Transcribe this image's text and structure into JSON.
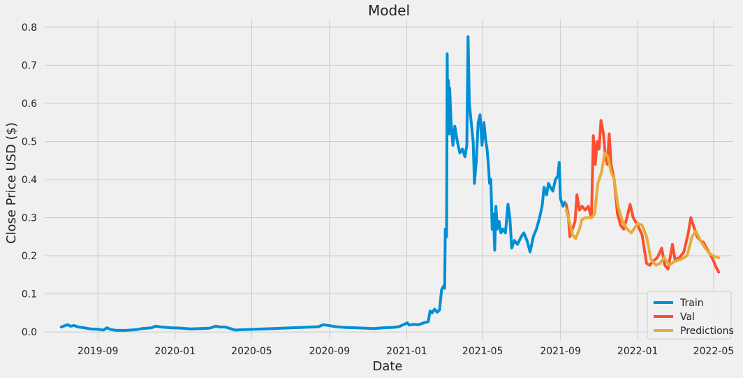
{
  "chart_data": {
    "type": "line",
    "title": "Model",
    "xlabel": "Date",
    "ylabel": "Close Price USD ($)",
    "xlim": [
      "2019-06-10",
      "2022-06-01"
    ],
    "ylim": [
      -0.02,
      0.82
    ],
    "grid": true,
    "legend_position": "lower-right",
    "x_ticks": [
      "2019-09-01",
      "2020-01-01",
      "2020-05-01",
      "2020-09-01",
      "2021-01-01",
      "2021-05-01",
      "2021-09-01",
      "2022-01-01",
      "2022-05-01"
    ],
    "x_tick_labels": [
      "2019-09",
      "2020-01",
      "2020-05",
      "2020-09",
      "2021-01",
      "2021-05",
      "2021-09",
      "2022-01",
      "2022-05"
    ],
    "y_ticks": [
      0.0,
      0.1,
      0.2,
      0.3,
      0.4,
      0.5,
      0.6,
      0.7,
      0.8
    ],
    "y_tick_labels": [
      "0.0",
      "0.1",
      "0.2",
      "0.3",
      "0.4",
      "0.5",
      "0.6",
      "0.7",
      "0.8"
    ],
    "series": [
      {
        "name": "Train",
        "color": "#008fd5",
        "points": [
          [
            "2019-07-05",
            0.013
          ],
          [
            "2019-07-10",
            0.016
          ],
          [
            "2019-07-15",
            0.019
          ],
          [
            "2019-07-20",
            0.015
          ],
          [
            "2019-07-25",
            0.017
          ],
          [
            "2019-08-01",
            0.013
          ],
          [
            "2019-08-10",
            0.011
          ],
          [
            "2019-08-20",
            0.008
          ],
          [
            "2019-09-01",
            0.007
          ],
          [
            "2019-09-10",
            0.005
          ],
          [
            "2019-09-15",
            0.011
          ],
          [
            "2019-09-22",
            0.006
          ],
          [
            "2019-10-01",
            0.004
          ],
          [
            "2019-10-15",
            0.004
          ],
          [
            "2019-11-01",
            0.006
          ],
          [
            "2019-11-10",
            0.009
          ],
          [
            "2019-11-25",
            0.011
          ],
          [
            "2019-12-01",
            0.015
          ],
          [
            "2019-12-10",
            0.013
          ],
          [
            "2019-12-25",
            0.011
          ],
          [
            "2020-01-10",
            0.01
          ],
          [
            "2020-01-25",
            0.008
          ],
          [
            "2020-02-10",
            0.009
          ],
          [
            "2020-02-25",
            0.01
          ],
          [
            "2020-03-05",
            0.015
          ],
          [
            "2020-03-12",
            0.013
          ],
          [
            "2020-03-20",
            0.013
          ],
          [
            "2020-03-28",
            0.009
          ],
          [
            "2020-04-05",
            0.005
          ],
          [
            "2020-04-20",
            0.006
          ],
          [
            "2020-05-05",
            0.007
          ],
          [
            "2020-05-20",
            0.008
          ],
          [
            "2020-06-05",
            0.009
          ],
          [
            "2020-06-20",
            0.01
          ],
          [
            "2020-07-05",
            0.011
          ],
          [
            "2020-07-20",
            0.012
          ],
          [
            "2020-08-05",
            0.013
          ],
          [
            "2020-08-15",
            0.014
          ],
          [
            "2020-08-22",
            0.019
          ],
          [
            "2020-08-30",
            0.017
          ],
          [
            "2020-09-10",
            0.014
          ],
          [
            "2020-09-25",
            0.012
          ],
          [
            "2020-10-10",
            0.011
          ],
          [
            "2020-10-25",
            0.01
          ],
          [
            "2020-11-10",
            0.009
          ],
          [
            "2020-11-25",
            0.011
          ],
          [
            "2020-12-10",
            0.012
          ],
          [
            "2020-12-20",
            0.014
          ],
          [
            "2020-12-28",
            0.02
          ],
          [
            "2021-01-02",
            0.024
          ],
          [
            "2021-01-05",
            0.018
          ],
          [
            "2021-01-12",
            0.02
          ],
          [
            "2021-01-20",
            0.019
          ],
          [
            "2021-01-28",
            0.024
          ],
          [
            "2021-02-04",
            0.027
          ],
          [
            "2021-02-07",
            0.055
          ],
          [
            "2021-02-10",
            0.05
          ],
          [
            "2021-02-14",
            0.06
          ],
          [
            "2021-02-18",
            0.052
          ],
          [
            "2021-02-22",
            0.058
          ],
          [
            "2021-02-25",
            0.11
          ],
          [
            "2021-02-28",
            0.12
          ],
          [
            "2021-03-02",
            0.115
          ],
          [
            "2021-03-03",
            0.27
          ],
          [
            "2021-03-05",
            0.25
          ],
          [
            "2021-03-06",
            0.73
          ],
          [
            "2021-03-07",
            0.53
          ],
          [
            "2021-03-08",
            0.66
          ],
          [
            "2021-03-09",
            0.52
          ],
          [
            "2021-03-10",
            0.64
          ],
          [
            "2021-03-12",
            0.55
          ],
          [
            "2021-03-15",
            0.49
          ],
          [
            "2021-03-18",
            0.54
          ],
          [
            "2021-03-22",
            0.5
          ],
          [
            "2021-03-26",
            0.47
          ],
          [
            "2021-03-30",
            0.48
          ],
          [
            "2021-04-03",
            0.46
          ],
          [
            "2021-04-06",
            0.49
          ],
          [
            "2021-04-08",
            0.775
          ],
          [
            "2021-04-10",
            0.6
          ],
          [
            "2021-04-13",
            0.55
          ],
          [
            "2021-04-16",
            0.5
          ],
          [
            "2021-04-18",
            0.39
          ],
          [
            "2021-04-21",
            0.45
          ],
          [
            "2021-04-24",
            0.55
          ],
          [
            "2021-04-27",
            0.57
          ],
          [
            "2021-04-30",
            0.49
          ],
          [
            "2021-05-03",
            0.55
          ],
          [
            "2021-05-06",
            0.5
          ],
          [
            "2021-05-08",
            0.48
          ],
          [
            "2021-05-10",
            0.44
          ],
          [
            "2021-05-12",
            0.39
          ],
          [
            "2021-05-14",
            0.4
          ],
          [
            "2021-05-16",
            0.27
          ],
          [
            "2021-05-18",
            0.31
          ],
          [
            "2021-05-20",
            0.215
          ],
          [
            "2021-05-22",
            0.33
          ],
          [
            "2021-05-24",
            0.27
          ],
          [
            "2021-05-27",
            0.29
          ],
          [
            "2021-05-30",
            0.26
          ],
          [
            "2021-06-02",
            0.27
          ],
          [
            "2021-06-06",
            0.26
          ],
          [
            "2021-06-10",
            0.335
          ],
          [
            "2021-06-13",
            0.3
          ],
          [
            "2021-06-16",
            0.22
          ],
          [
            "2021-06-20",
            0.24
          ],
          [
            "2021-06-25",
            0.23
          ],
          [
            "2021-07-01",
            0.25
          ],
          [
            "2021-07-05",
            0.26
          ],
          [
            "2021-07-10",
            0.24
          ],
          [
            "2021-07-15",
            0.21
          ],
          [
            "2021-07-20",
            0.25
          ],
          [
            "2021-07-25",
            0.27
          ],
          [
            "2021-07-30",
            0.3
          ],
          [
            "2021-08-03",
            0.33
          ],
          [
            "2021-08-06",
            0.38
          ],
          [
            "2021-08-10",
            0.36
          ],
          [
            "2021-08-13",
            0.39
          ],
          [
            "2021-08-16",
            0.38
          ],
          [
            "2021-08-20",
            0.37
          ],
          [
            "2021-08-24",
            0.4
          ],
          [
            "2021-08-28",
            0.41
          ],
          [
            "2021-08-30",
            0.445
          ],
          [
            "2021-09-01",
            0.35
          ],
          [
            "2021-09-05",
            0.33
          ],
          [
            "2021-09-08",
            0.34
          ]
        ]
      },
      {
        "name": "Val",
        "color": "#fc4f30",
        "points": [
          [
            "2021-09-10",
            0.335
          ],
          [
            "2021-09-13",
            0.31
          ],
          [
            "2021-09-16",
            0.25
          ],
          [
            "2021-09-20",
            0.27
          ],
          [
            "2021-09-24",
            0.29
          ],
          [
            "2021-09-27",
            0.36
          ],
          [
            "2021-10-01",
            0.32
          ],
          [
            "2021-10-05",
            0.33
          ],
          [
            "2021-10-10",
            0.32
          ],
          [
            "2021-10-15",
            0.33
          ],
          [
            "2021-10-20",
            0.3
          ],
          [
            "2021-10-23",
            0.515
          ],
          [
            "2021-10-26",
            0.44
          ],
          [
            "2021-10-29",
            0.5
          ],
          [
            "2021-11-01",
            0.48
          ],
          [
            "2021-11-04",
            0.555
          ],
          [
            "2021-11-08",
            0.52
          ],
          [
            "2021-11-11",
            0.46
          ],
          [
            "2021-11-14",
            0.44
          ],
          [
            "2021-11-17",
            0.52
          ],
          [
            "2021-11-20",
            0.44
          ],
          [
            "2021-11-25",
            0.4
          ],
          [
            "2021-11-30",
            0.31
          ],
          [
            "2021-12-05",
            0.28
          ],
          [
            "2021-12-10",
            0.27
          ],
          [
            "2021-12-15",
            0.3
          ],
          [
            "2021-12-20",
            0.335
          ],
          [
            "2021-12-25",
            0.3
          ],
          [
            "2022-01-01",
            0.28
          ],
          [
            "2022-01-08",
            0.255
          ],
          [
            "2022-01-15",
            0.18
          ],
          [
            "2022-01-20",
            0.175
          ],
          [
            "2022-01-25",
            0.185
          ],
          [
            "2022-02-01",
            0.195
          ],
          [
            "2022-02-08",
            0.22
          ],
          [
            "2022-02-13",
            0.175
          ],
          [
            "2022-02-18",
            0.165
          ],
          [
            "2022-02-25",
            0.23
          ],
          [
            "2022-03-01",
            0.19
          ],
          [
            "2022-03-08",
            0.195
          ],
          [
            "2022-03-15",
            0.21
          ],
          [
            "2022-03-22",
            0.26
          ],
          [
            "2022-03-26",
            0.3
          ],
          [
            "2022-03-30",
            0.28
          ],
          [
            "2022-04-05",
            0.25
          ],
          [
            "2022-04-10",
            0.24
          ],
          [
            "2022-04-15",
            0.235
          ],
          [
            "2022-04-20",
            0.22
          ],
          [
            "2022-04-25",
            0.205
          ],
          [
            "2022-04-30",
            0.19
          ],
          [
            "2022-05-05",
            0.17
          ],
          [
            "2022-05-09",
            0.157
          ]
        ]
      },
      {
        "name": "Predictions",
        "color": "#e5ae38",
        "points": [
          [
            "2021-09-10",
            0.32
          ],
          [
            "2021-09-15",
            0.29
          ],
          [
            "2021-09-20",
            0.255
          ],
          [
            "2021-09-25",
            0.245
          ],
          [
            "2021-10-01",
            0.27
          ],
          [
            "2021-10-05",
            0.295
          ],
          [
            "2021-10-10",
            0.3
          ],
          [
            "2021-10-20",
            0.3
          ],
          [
            "2021-10-25",
            0.31
          ],
          [
            "2021-10-30",
            0.39
          ],
          [
            "2021-11-05",
            0.42
          ],
          [
            "2021-11-10",
            0.47
          ],
          [
            "2021-11-15",
            0.46
          ],
          [
            "2021-11-20",
            0.42
          ],
          [
            "2021-11-25",
            0.4
          ],
          [
            "2021-12-01",
            0.33
          ],
          [
            "2021-12-08",
            0.29
          ],
          [
            "2021-12-15",
            0.27
          ],
          [
            "2021-12-22",
            0.26
          ],
          [
            "2022-01-01",
            0.285
          ],
          [
            "2022-01-08",
            0.28
          ],
          [
            "2022-01-15",
            0.25
          ],
          [
            "2022-01-22",
            0.19
          ],
          [
            "2022-01-30",
            0.175
          ],
          [
            "2022-02-05",
            0.18
          ],
          [
            "2022-02-12",
            0.195
          ],
          [
            "2022-02-20",
            0.175
          ],
          [
            "2022-02-28",
            0.185
          ],
          [
            "2022-03-10",
            0.19
          ],
          [
            "2022-03-20",
            0.2
          ],
          [
            "2022-03-28",
            0.25
          ],
          [
            "2022-04-03",
            0.265
          ],
          [
            "2022-04-10",
            0.24
          ],
          [
            "2022-04-18",
            0.22
          ],
          [
            "2022-04-25",
            0.205
          ],
          [
            "2022-05-03",
            0.198
          ],
          [
            "2022-05-09",
            0.195
          ]
        ]
      }
    ]
  }
}
